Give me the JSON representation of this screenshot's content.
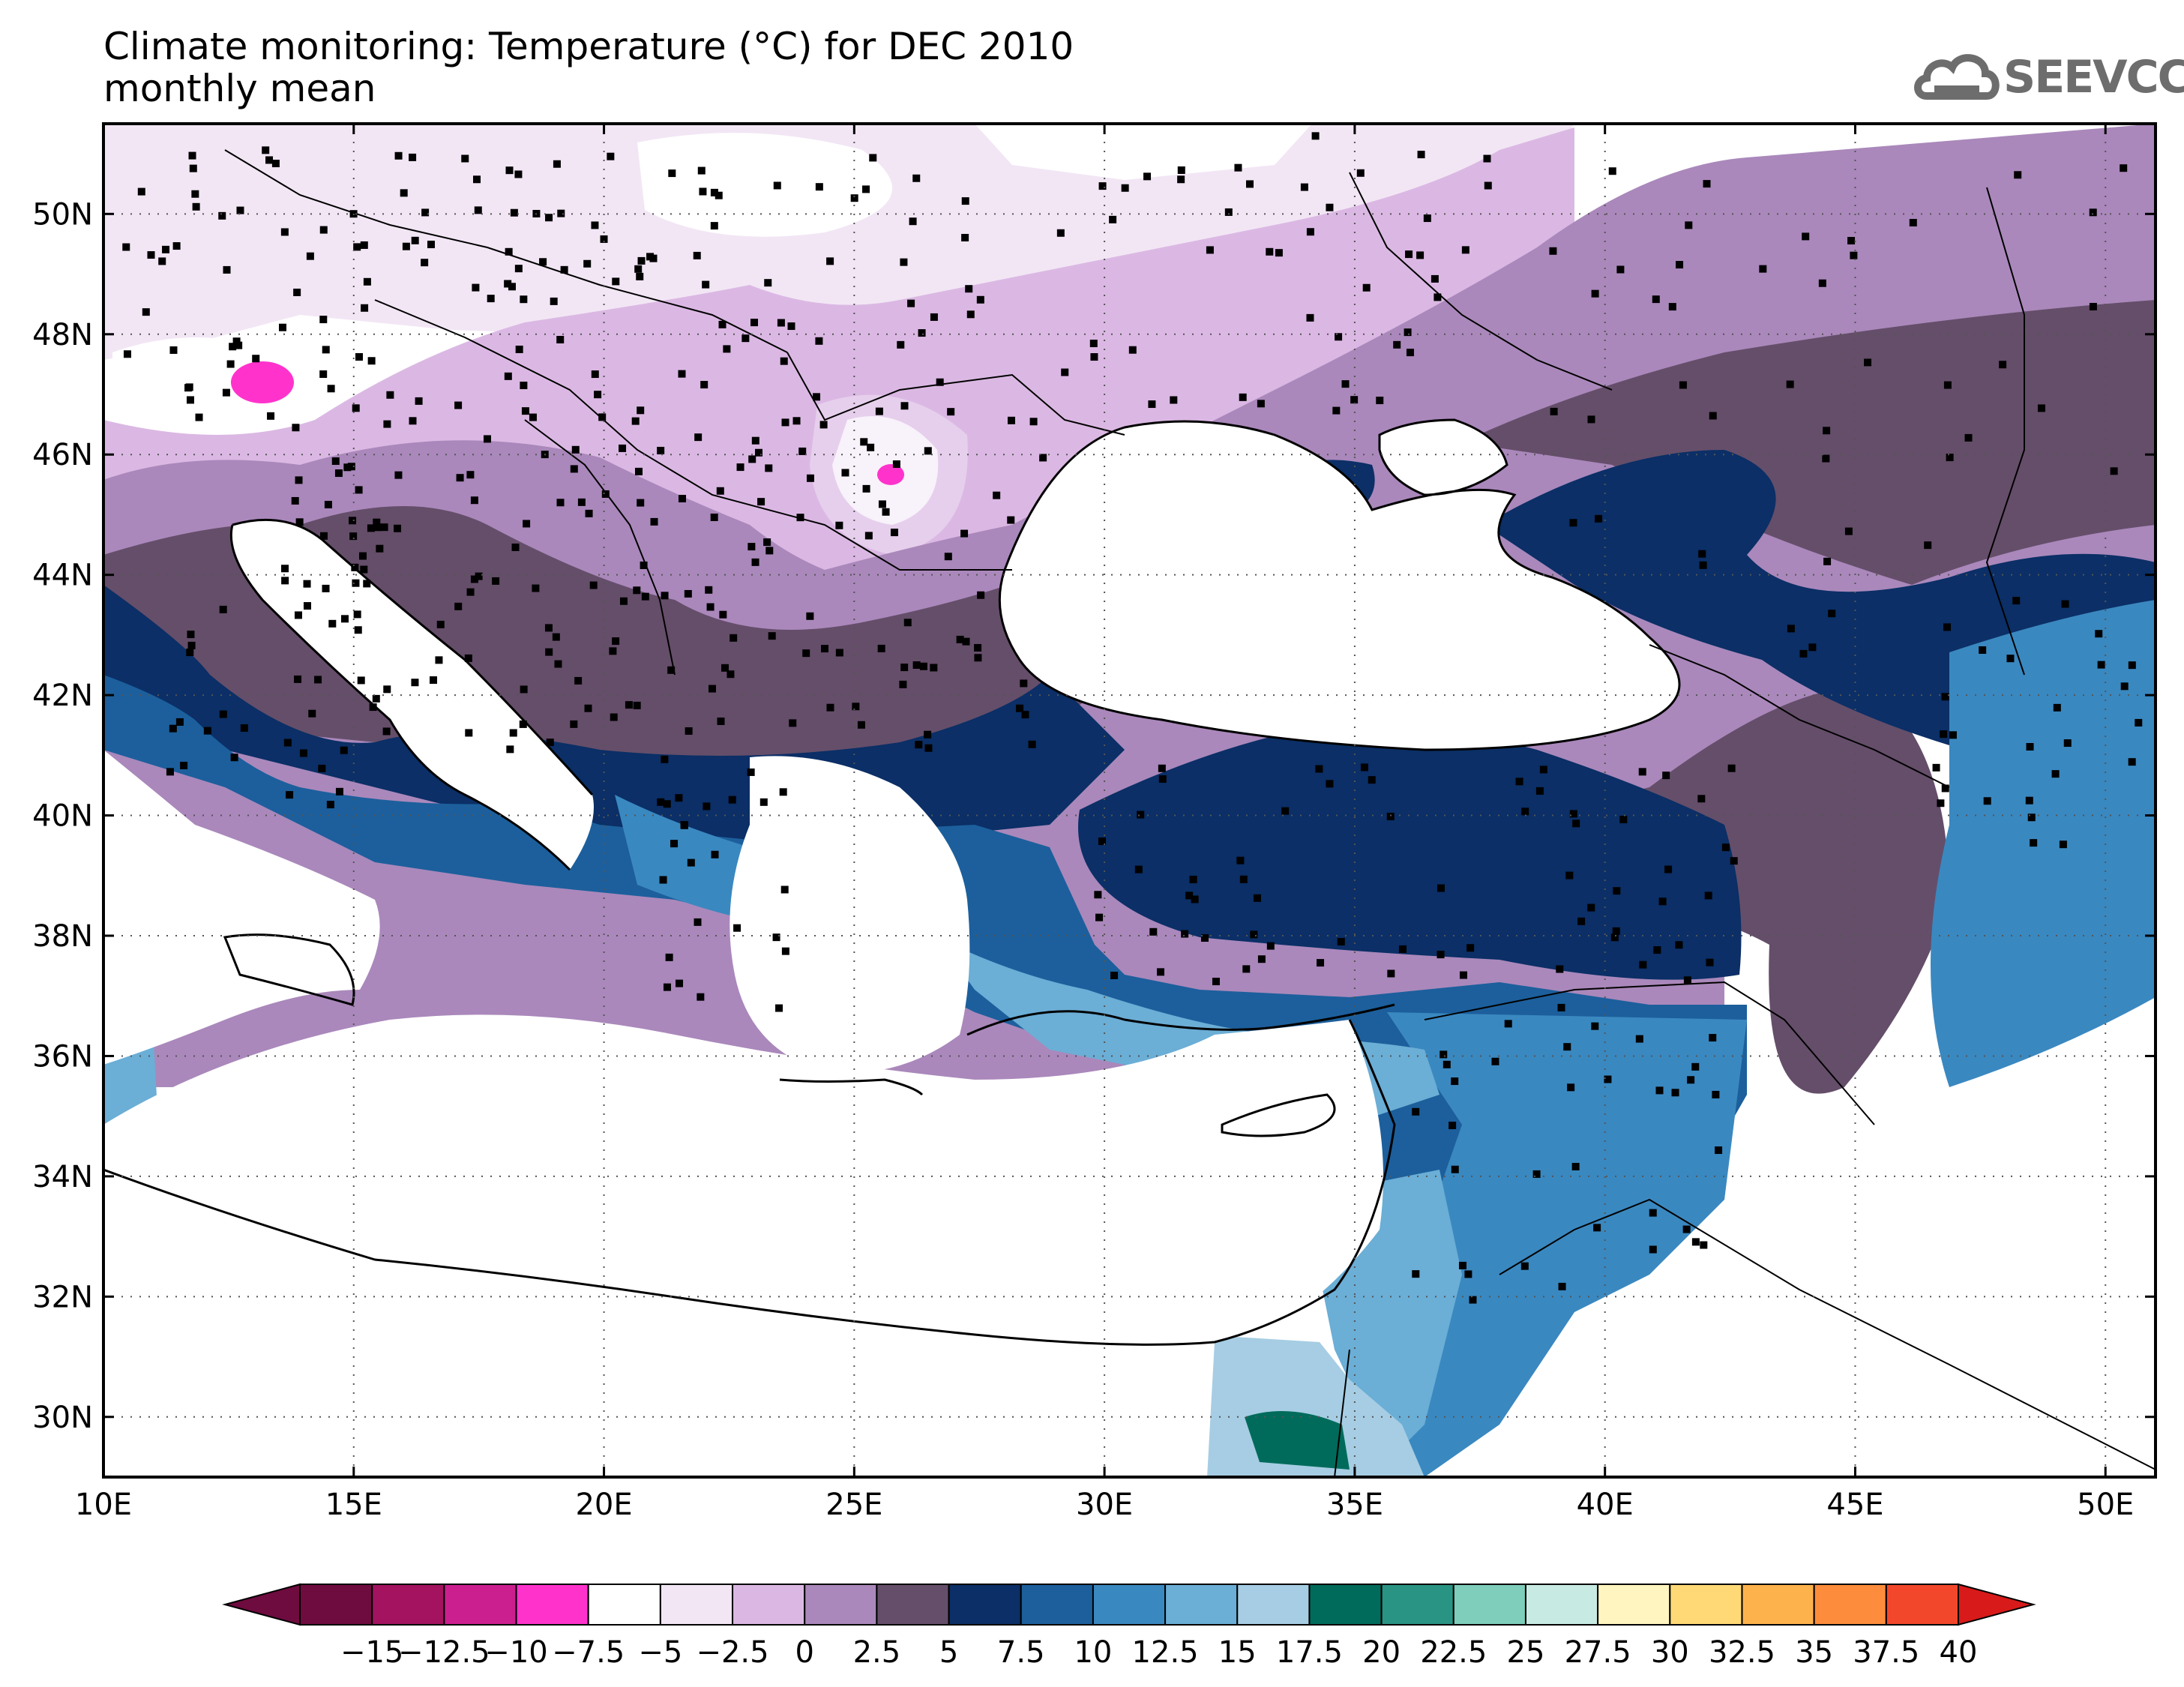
{
  "title": {
    "line1": "Climate monitoring: Temperature (°C) for DEC 2010",
    "line2": "monthly mean"
  },
  "logo": {
    "text": "SEEVCCC",
    "icon": "cloud-icon"
  },
  "map": {
    "lon_range": [
      10,
      51
    ],
    "lat_range": [
      29,
      51.5
    ],
    "lat_ticks": [
      {
        "value": 30,
        "label": "30N"
      },
      {
        "value": 32,
        "label": "32N"
      },
      {
        "value": 34,
        "label": "34N"
      },
      {
        "value": 36,
        "label": "36N"
      },
      {
        "value": 38,
        "label": "38N"
      },
      {
        "value": 40,
        "label": "40N"
      },
      {
        "value": 42,
        "label": "42N"
      },
      {
        "value": 44,
        "label": "44N"
      },
      {
        "value": 46,
        "label": "46N"
      },
      {
        "value": 48,
        "label": "48N"
      },
      {
        "value": 50,
        "label": "50N"
      }
    ],
    "lon_ticks": [
      {
        "value": 10,
        "label": "10E"
      },
      {
        "value": 15,
        "label": "15E"
      },
      {
        "value": 20,
        "label": "20E"
      },
      {
        "value": 25,
        "label": "25E"
      },
      {
        "value": 30,
        "label": "30E"
      },
      {
        "value": 35,
        "label": "35E"
      },
      {
        "value": 40,
        "label": "40E"
      },
      {
        "value": 45,
        "label": "45E"
      },
      {
        "value": 50,
        "label": "50E"
      }
    ]
  },
  "colorbar": {
    "labels": [
      "−15",
      "−12.5",
      "−10",
      "−7.5",
      "−5",
      "−2.5",
      "0",
      "2.5",
      "5",
      "7.5",
      "10",
      "12.5",
      "15",
      "17.5",
      "20",
      "22.5",
      "25",
      "27.5",
      "30",
      "32.5",
      "35",
      "37.5",
      "40"
    ],
    "colors": [
      "#6e0b3f",
      "#a3135f",
      "#cc1f8f",
      "#ff33cc",
      "#ffffff",
      "#f2e6f5",
      "#dbb8e3",
      "#aa88bb",
      "#654e6a",
      "#0b2f66",
      "#1c5f9c",
      "#3a88c0",
      "#6baed6",
      "#a6cde3",
      "#006b5b",
      "#2a9484",
      "#7fcdbb",
      "#c7ebe2",
      "#fff5c0",
      "#fed976",
      "#feb24c",
      "#fd8d3c",
      "#f2472b"
    ],
    "under_color": "#6e0b3f",
    "over_color": "#d81a1a"
  }
}
